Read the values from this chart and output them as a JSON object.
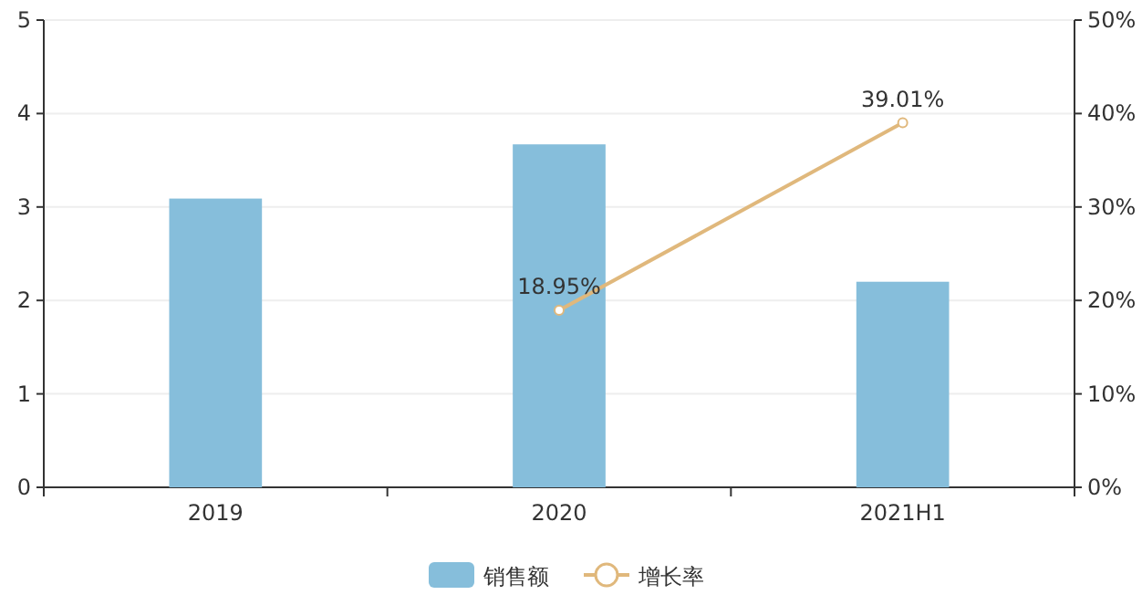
{
  "chart_data": {
    "type": "bar",
    "categories": [
      "2019",
      "2020",
      "2021H1"
    ],
    "series": [
      {
        "name": "销售额",
        "color": "#86bedb",
        "values": [
          3.09,
          3.67,
          2.2
        ]
      },
      {
        "name": "增长率",
        "type": "line",
        "axis": "y2",
        "color": "#e0b87c",
        "marker": "circle",
        "values": [
          null,
          18.95,
          39.01
        ],
        "value_labels": [
          null,
          "18.95%",
          "39.01%"
        ]
      }
    ],
    "ylim": [
      0,
      5
    ],
    "yticks": [
      0,
      1,
      2,
      3,
      4,
      5
    ],
    "y2lim": [
      0,
      50
    ],
    "y2ticks": [
      {
        "value": 0,
        "label": "0%"
      },
      {
        "value": 10,
        "label": "10%"
      },
      {
        "value": 20,
        "label": "20%"
      },
      {
        "value": 30,
        "label": "30%"
      },
      {
        "value": 40,
        "label": "40%"
      },
      {
        "value": 50,
        "label": "50%"
      }
    ],
    "grid": "y",
    "legend": "bottom"
  }
}
